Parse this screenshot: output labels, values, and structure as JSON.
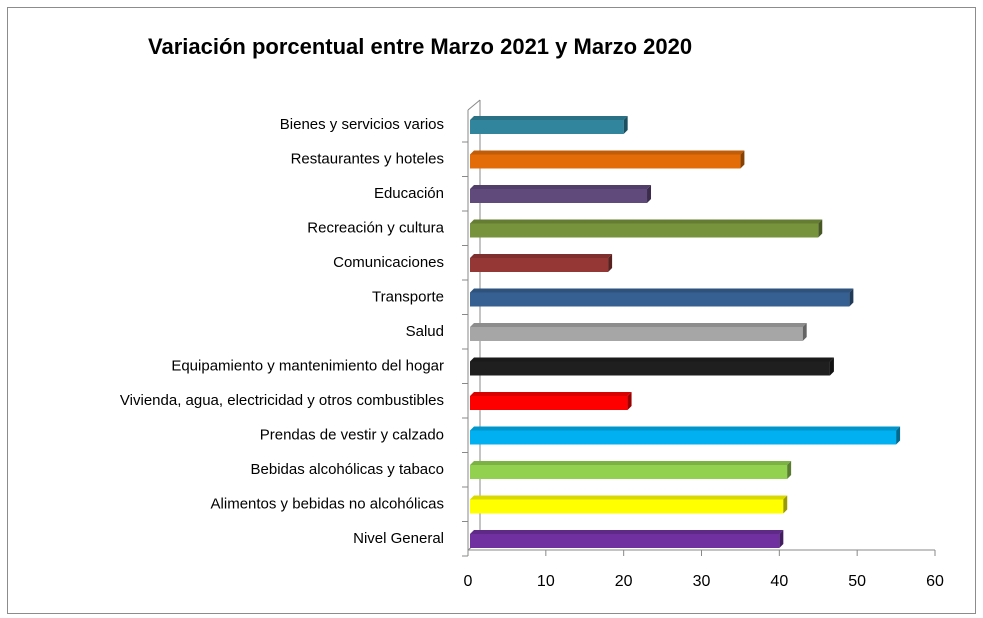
{
  "chart_data": {
    "type": "bar",
    "orientation": "horizontal",
    "title": "Variación porcentual entre Marzo 2021 y Marzo 2020",
    "categories": [
      "Bienes y servicios varios",
      "Restaurantes y hoteles",
      "Educación",
      "Recreación y cultura",
      "Comunicaciones",
      "Transporte",
      "Salud",
      "Equipamiento y mantenimiento del hogar",
      "Vivienda, agua, electricidad y otros combustibles",
      "Prendas de vestir y calzado",
      "Bebidas alcohólicas y tabaco",
      "Alimentos y bebidas no alcohólicas",
      "Nivel General"
    ],
    "values": [
      20,
      35,
      23,
      45,
      18,
      49,
      43,
      46.5,
      20.5,
      55,
      41,
      40.5,
      40
    ],
    "colors": [
      "#31859c",
      "#e36c09",
      "#604a7b",
      "#77933c",
      "#953735",
      "#366092",
      "#a6a6a6",
      "#1f1f1f",
      "#ff0000",
      "#00b0f0",
      "#92d050",
      "#ffff00",
      "#7030a0"
    ],
    "xlim": [
      0,
      60
    ],
    "xticks": [
      0,
      10,
      20,
      30,
      40,
      50,
      60
    ]
  }
}
